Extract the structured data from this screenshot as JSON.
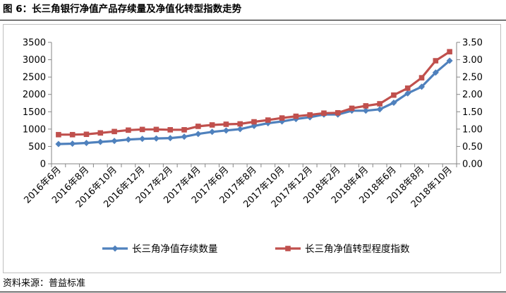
{
  "figure": {
    "title": "图 6：长三角银行净值产品存续量及净值化转型指数走势",
    "source": "资料来源：普益标准"
  },
  "chart_data": {
    "type": "line",
    "categories": [
      "2016年6月",
      "2016年7月",
      "2016年8月",
      "2016年9月",
      "2016年10月",
      "2016年11月",
      "2016年12月",
      "2017年1月",
      "2017年2月",
      "2017年3月",
      "2017年4月",
      "2017年5月",
      "2017年6月",
      "2017年7月",
      "2017年8月",
      "2017年9月",
      "2017年10月",
      "2017年11月",
      "2017年12月",
      "2018年1月",
      "2018年2月",
      "2018年3月",
      "2018年4月",
      "2018年5月",
      "2018年6月",
      "2018年7月",
      "2018年8月",
      "2018年9月",
      "2018年10月"
    ],
    "tick_labels": [
      "2016年6月",
      "2016年8月",
      "2016年10月",
      "2016年12月",
      "2017年2月",
      "2017年4月",
      "2017年6月",
      "2017年8月",
      "2017年10月",
      "2017年12月",
      "2018年2月",
      "2018年4月",
      "2018年6月",
      "2018年8月",
      "2018年10月"
    ],
    "series": [
      {
        "name": "长三角净值存续数量",
        "axis": "left",
        "color": "#4f81bd",
        "values": [
          570,
          580,
          600,
          630,
          660,
          700,
          720,
          730,
          740,
          780,
          860,
          920,
          960,
          1000,
          1090,
          1170,
          1220,
          1290,
          1340,
          1420,
          1420,
          1530,
          1530,
          1570,
          1760,
          2030,
          2220,
          2630,
          2970
        ]
      },
      {
        "name": "长三角净值转型程度指数",
        "axis": "right",
        "color": "#c0504d",
        "values": [
          0.84,
          0.84,
          0.85,
          0.89,
          0.93,
          0.97,
          0.99,
          0.99,
          0.98,
          0.98,
          1.08,
          1.12,
          1.14,
          1.15,
          1.21,
          1.26,
          1.32,
          1.37,
          1.41,
          1.46,
          1.47,
          1.6,
          1.67,
          1.73,
          1.98,
          2.18,
          2.48,
          2.97,
          3.23
        ]
      }
    ],
    "yleft": {
      "min": 0,
      "max": 3500,
      "step": 500,
      "ticks": [
        "0",
        "500",
        "1000",
        "1500",
        "2000",
        "2500",
        "3000",
        "3500"
      ]
    },
    "yright": {
      "min": 0,
      "max": 3.5,
      "step": 0.5,
      "ticks": [
        "0.00",
        "0.50",
        "1.00",
        "1.50",
        "2.00",
        "2.50",
        "3.00",
        "3.50"
      ]
    },
    "grid": false,
    "legend_position": "bottom"
  }
}
